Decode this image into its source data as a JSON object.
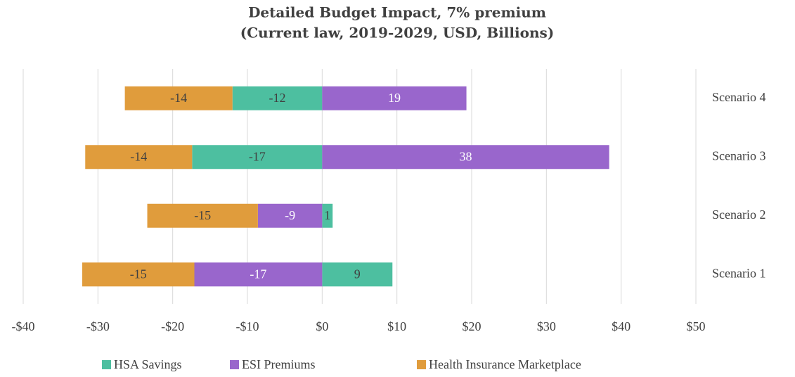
{
  "chart_data": {
    "type": "diverging_stacked_bar",
    "title": "Detailed Budget Impact, 7% premium",
    "subtitle": "(Current law, 2019-2029, USD, Billions)",
    "categories": [
      "Scenario 1",
      "Scenario 2",
      "Scenario 3",
      "Scenario 4"
    ],
    "series": [
      {
        "name": "HSA Savings",
        "color": "#4dbfa0",
        "values": [
          9.4,
          1.4,
          -17.4,
          -12.0
        ],
        "value_labels": [
          "9",
          "1",
          "-17",
          "-12"
        ]
      },
      {
        "name": "ESI Premiums",
        "color": "#9966cc",
        "values": [
          -17.1,
          -8.6,
          38.4,
          19.3
        ],
        "value_labels": [
          "-17",
          "-9",
          "38",
          "19"
        ]
      },
      {
        "name": "Health Insurance Marketplace",
        "color": "#e09c3c",
        "values": [
          -15.0,
          -14.8,
          -14.3,
          -14.4
        ],
        "value_labels": [
          "-15",
          "-15",
          "-14",
          "-14"
        ]
      }
    ],
    "xlim": [
      -40,
      50
    ],
    "xticks": [
      {
        "value": -40,
        "label": "-$40"
      },
      {
        "value": -30,
        "label": "-$30"
      },
      {
        "value": -20,
        "label": "-$20"
      },
      {
        "value": -10,
        "label": "-$10"
      },
      {
        "value": 0,
        "label": "$0"
      },
      {
        "value": 10,
        "label": "$10"
      },
      {
        "value": 20,
        "label": "$20"
      },
      {
        "value": 30,
        "label": "$30"
      },
      {
        "value": 40,
        "label": "$40"
      },
      {
        "value": 50,
        "label": "$50"
      }
    ],
    "grid": true,
    "legend": "bottom"
  }
}
